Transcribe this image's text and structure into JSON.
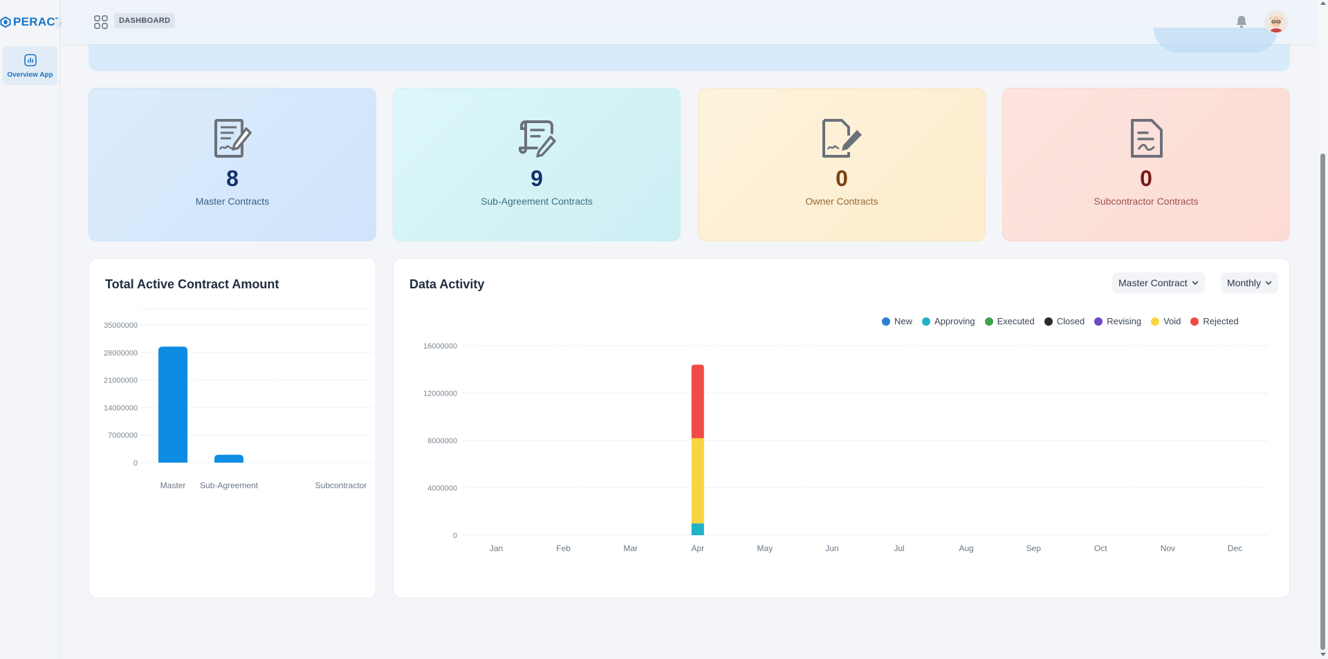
{
  "app": {
    "logo_text": "PERACT",
    "breadcrumb": "DASHBOARD",
    "sidebar_items": [
      {
        "label": "Overview App",
        "icon": "chart-icon"
      }
    ]
  },
  "stats": [
    {
      "value": "8",
      "label": "Master Contracts",
      "icon": "contract-signature-icon"
    },
    {
      "value": "9",
      "label": "Sub-Agreement Contracts",
      "icon": "scroll-edit-icon"
    },
    {
      "value": "0",
      "label": "Owner Contracts",
      "icon": "document-sign-icon"
    },
    {
      "value": "0",
      "label": "Subcontractor Contracts",
      "icon": "document-icon"
    }
  ],
  "panels": {
    "total": {
      "title": "Total Active Contract Amount"
    },
    "activity": {
      "title": "Data Activity",
      "contract_filter": "Master Contract",
      "period_filter": "Monthly"
    }
  },
  "colors": {
    "accent": "#1a73c7",
    "bar": "#0e8ce4",
    "new": "#2f7fd6",
    "approving": "#1fb3c6",
    "executed": "#3fa44a",
    "closed": "#2b2b2b",
    "revising": "#6e48c6",
    "void": "#f8d43e",
    "rejected": "#f04b45"
  },
  "chart_data": [
    {
      "type": "bar",
      "title": "Total Active Contract Amount",
      "categories": [
        "Master",
        "Sub-Agreement",
        "Subcontractor"
      ],
      "values": [
        29500000,
        2000000,
        0
      ],
      "ylim": [
        0,
        35000000
      ],
      "yticks": [
        "35000000",
        "28000000",
        "21000000",
        "14000000",
        "7000000",
        "0"
      ],
      "grid": true
    },
    {
      "type": "bar",
      "stacked": true,
      "title": "Data Activity",
      "categories": [
        "Jan",
        "Feb",
        "Mar",
        "Apr",
        "May",
        "Jun",
        "Jul",
        "Aug",
        "Sep",
        "Oct",
        "Nov",
        "Dec"
      ],
      "ylim": [
        0,
        16000000
      ],
      "yticks": [
        "16000000",
        "12000000",
        "8000000",
        "4000000",
        "0"
      ],
      "legend_position": "top-right",
      "series": [
        {
          "name": "New",
          "color": "#2f7fd6",
          "values": [
            0,
            0,
            0,
            0,
            0,
            0,
            0,
            0,
            0,
            0,
            0,
            0
          ]
        },
        {
          "name": "Approving",
          "color": "#1fb3c6",
          "values": [
            0,
            0,
            0,
            1000000,
            0,
            0,
            0,
            0,
            0,
            0,
            0,
            0
          ]
        },
        {
          "name": "Executed",
          "color": "#3fa44a",
          "values": [
            0,
            0,
            0,
            0,
            0,
            0,
            0,
            0,
            0,
            0,
            0,
            0
          ]
        },
        {
          "name": "Closed",
          "color": "#2b2b2b",
          "values": [
            0,
            0,
            0,
            0,
            0,
            0,
            0,
            0,
            0,
            0,
            0,
            0
          ]
        },
        {
          "name": "Revising",
          "color": "#6e48c6",
          "values": [
            0,
            0,
            0,
            0,
            0,
            0,
            0,
            0,
            0,
            0,
            0,
            0
          ]
        },
        {
          "name": "Void",
          "color": "#f8d43e",
          "values": [
            0,
            0,
            0,
            7200000,
            0,
            0,
            0,
            0,
            0,
            0,
            0,
            0
          ]
        },
        {
          "name": "Rejected",
          "color": "#f04b45",
          "values": [
            0,
            0,
            0,
            6200000,
            0,
            0,
            0,
            0,
            0,
            0,
            0,
            0
          ]
        }
      ],
      "grid": true
    }
  ]
}
